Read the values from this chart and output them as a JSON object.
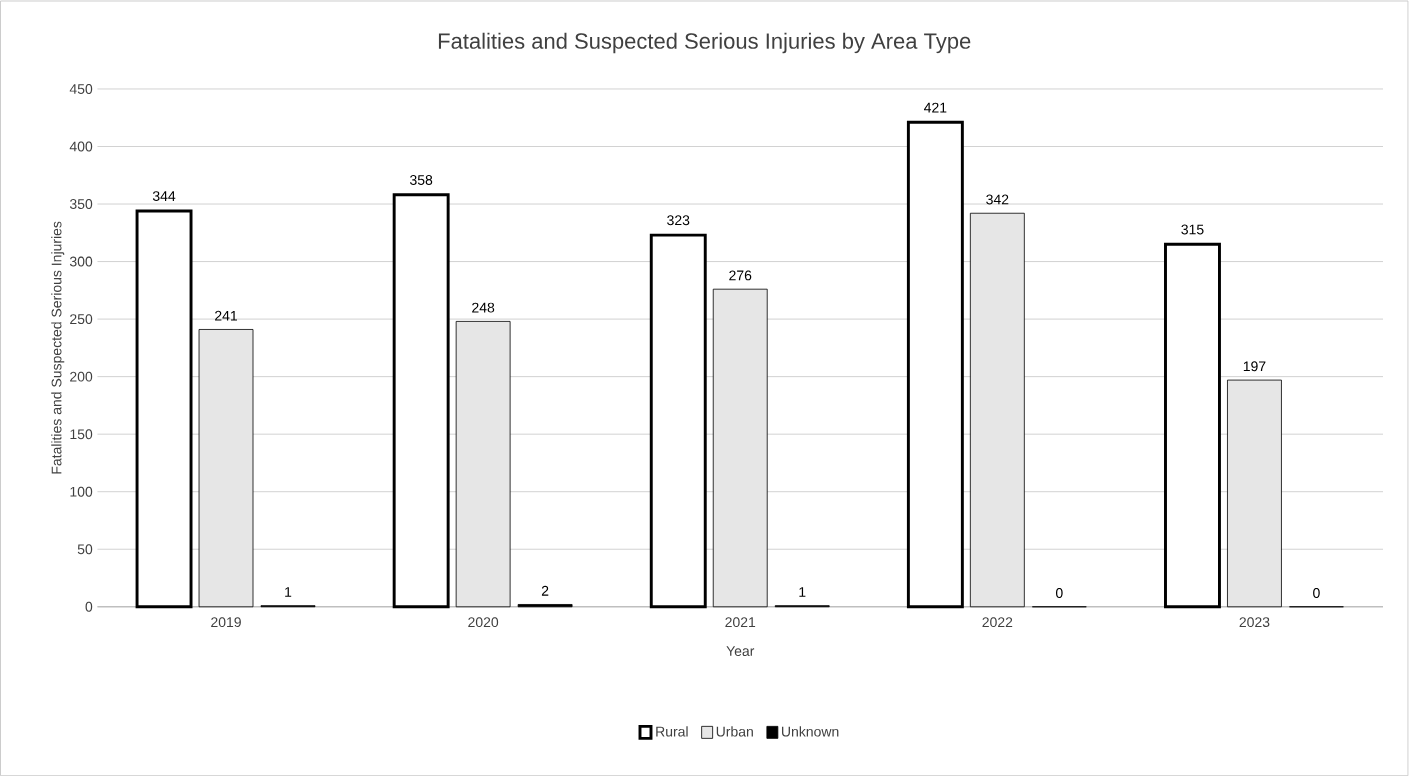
{
  "chart_data": {
    "type": "bar",
    "title": "Fatalities and Suspected Serious Injuries by Area Type",
    "xlabel": "Year",
    "ylabel": "Fatalities and Suspected Serious Injuries",
    "categories": [
      "2019",
      "2020",
      "2021",
      "2022",
      "2023"
    ],
    "series": [
      {
        "name": "Rural",
        "color": "#ffffff",
        "values": [
          344,
          358,
          323,
          421,
          315
        ]
      },
      {
        "name": "Urban",
        "color": "#e6e6e6",
        "values": [
          241,
          248,
          276,
          342,
          197
        ]
      },
      {
        "name": "Unknown",
        "color": "#000000",
        "values": [
          1,
          2,
          1,
          0,
          0
        ]
      }
    ],
    "ylim": [
      0,
      450
    ],
    "yticks": [
      0,
      50,
      100,
      150,
      200,
      250,
      300,
      350,
      400,
      450
    ],
    "grid": "y",
    "legend": "bottom",
    "data_labels": true
  }
}
